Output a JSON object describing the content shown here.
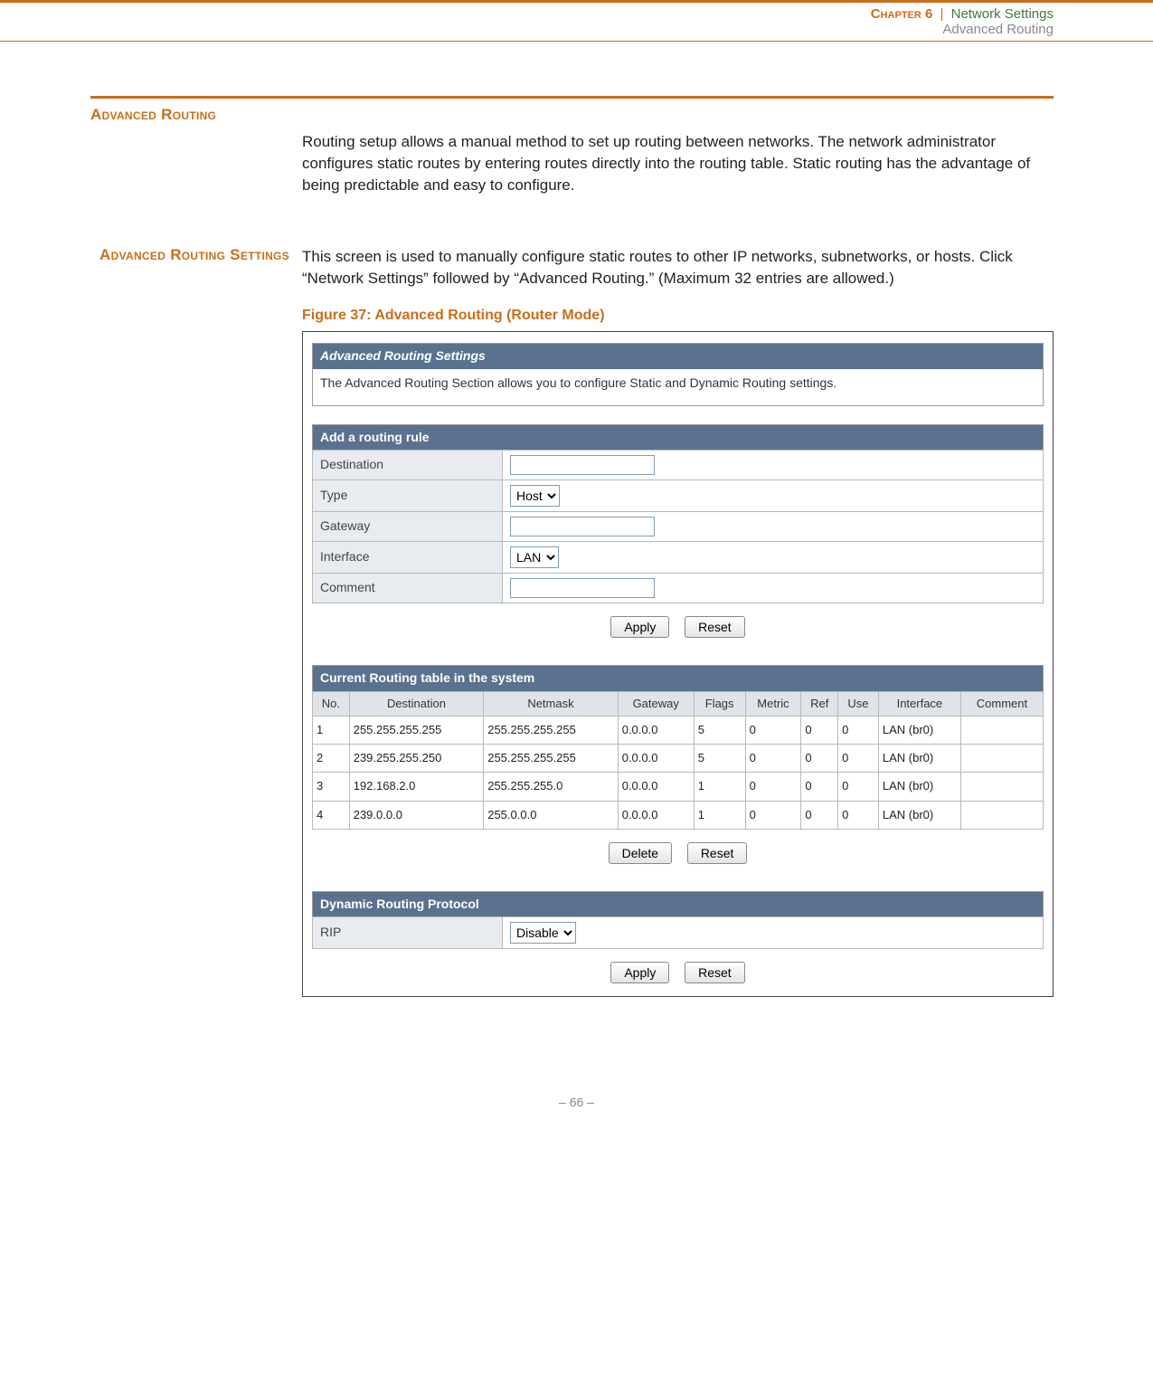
{
  "header": {
    "chapter_label": "Chapter 6",
    "divider": "|",
    "title": "Network Settings",
    "subtitle": "Advanced Routing"
  },
  "section1": {
    "heading": "Advanced Routing",
    "body": "Routing setup allows a manual method to set up routing between networks. The network administrator configures static routes by entering routes directly into the routing table. Static routing has the advantage of being predictable and easy to configure."
  },
  "section2": {
    "heading": "Advanced Routing Settings",
    "body": "This screen is used to manually configure static routes to other IP networks, subnetworks, or hosts. Click “Network Settings” followed by “Advanced Routing.” (Maximum 32 entries are allowed.)"
  },
  "figure_caption": "Figure 37:  Advanced Routing (Router Mode)",
  "panel_adv": {
    "title": "Advanced Routing Settings",
    "desc": "The Advanced Routing Section allows you to configure Static and Dynamic Routing settings."
  },
  "panel_add": {
    "title": "Add a routing rule",
    "rows": {
      "destination_label": "Destination",
      "type_label": "Type",
      "type_value": "Host",
      "gateway_label": "Gateway",
      "interface_label": "Interface",
      "interface_value": "LAN",
      "comment_label": "Comment"
    },
    "apply_button": "Apply",
    "reset_button": "Reset"
  },
  "panel_table": {
    "title": "Current Routing table in the system",
    "headers": [
      "No.",
      "Destination",
      "Netmask",
      "Gateway",
      "Flags",
      "Metric",
      "Ref",
      "Use",
      "Interface",
      "Comment"
    ],
    "rows": [
      [
        "1",
        "255.255.255.255",
        "255.255.255.255",
        "0.0.0.0",
        "5",
        "0",
        "0",
        "0",
        "LAN (br0)",
        ""
      ],
      [
        "2",
        "239.255.255.250",
        "255.255.255.255",
        "0.0.0.0",
        "5",
        "0",
        "0",
        "0",
        "LAN (br0)",
        ""
      ],
      [
        "3",
        "192.168.2.0",
        "255.255.255.0",
        "0.0.0.0",
        "1",
        "0",
        "0",
        "0",
        "LAN (br0)",
        ""
      ],
      [
        "4",
        "239.0.0.0",
        "255.0.0.0",
        "0.0.0.0",
        "1",
        "0",
        "0",
        "0",
        "LAN (br0)",
        ""
      ]
    ],
    "delete_button": "Delete",
    "reset_button": "Reset"
  },
  "panel_dyn": {
    "title": "Dynamic Routing Protocol",
    "rip_label": "RIP",
    "rip_value": "Disable",
    "apply_button": "Apply",
    "reset_button": "Reset"
  },
  "footer": {
    "page_number": "–  66  –"
  },
  "colors": {
    "accent_orange": "#c96e1a",
    "header_green": "#3a7a3a",
    "panel_blue": "#5a7290",
    "form_label_bg": "#e8ebef",
    "table_header_bg": "#e0e4ea",
    "border_gray": "#b8b8b8"
  }
}
